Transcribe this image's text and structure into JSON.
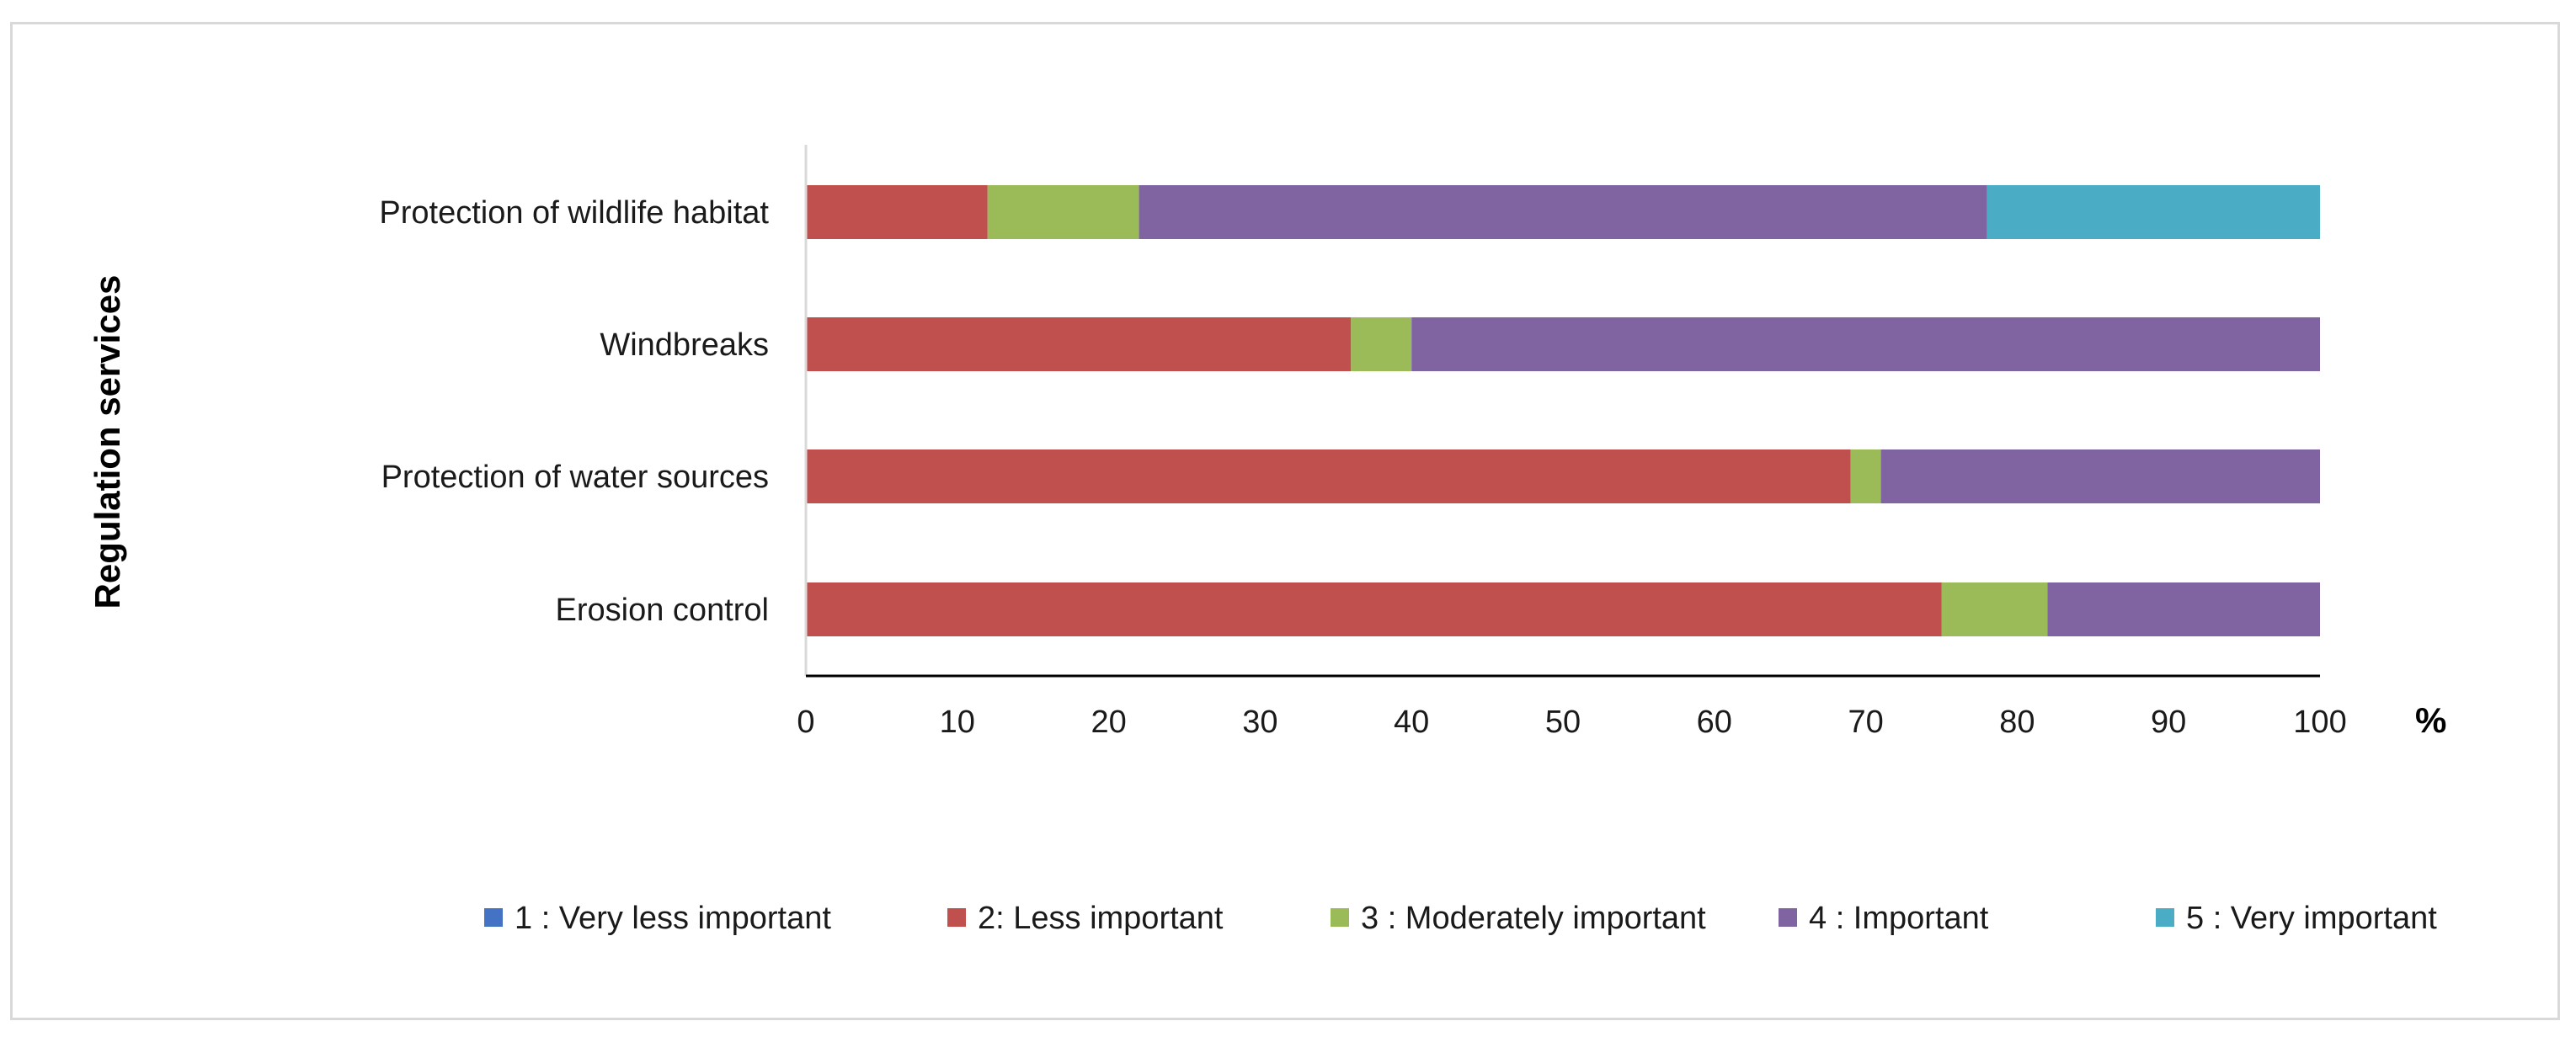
{
  "chart_data": {
    "type": "stacked-bar-horizontal",
    "title": "",
    "ylabel": "Regulation services",
    "xlabel": "",
    "x_unit": "%",
    "xlim": [
      0,
      100
    ],
    "x_ticks": [
      0,
      10,
      20,
      30,
      40,
      50,
      60,
      70,
      80,
      90,
      100
    ],
    "categories": [
      "Protection of wildlife habitat",
      "Windbreaks",
      "Protection of water sources",
      "Erosion control"
    ],
    "series": [
      {
        "name": "1 : Very less important",
        "color": "#4472c4",
        "values": [
          0,
          0,
          0,
          0
        ]
      },
      {
        "name": "2:  Less important",
        "color": "#c0504d",
        "values": [
          12,
          36,
          69,
          75
        ]
      },
      {
        "name": "3 : Moderately important",
        "color": "#9bbb59",
        "values": [
          10,
          4,
          2,
          7
        ]
      },
      {
        "name": "4 : Important",
        "color": "#8064a2",
        "values": [
          56,
          60,
          29,
          18
        ]
      },
      {
        "name": "5 : Very important",
        "color": "#4bacc6",
        "values": [
          22,
          0,
          0,
          0
        ]
      }
    ],
    "legend_position": "bottom",
    "grid": false
  }
}
